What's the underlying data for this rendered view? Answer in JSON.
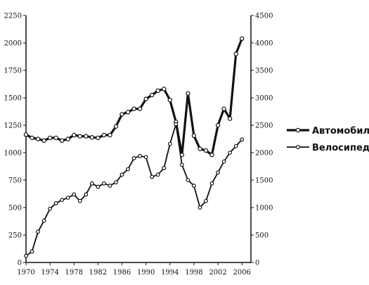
{
  "chart_data": {
    "type": "line",
    "title": "",
    "xlabel": "",
    "ylabel": "",
    "y2label": "",
    "grid": false,
    "legend_position": "right",
    "x": [
      1970,
      1971,
      1972,
      1973,
      1974,
      1975,
      1976,
      1977,
      1978,
      1979,
      1980,
      1981,
      1982,
      1983,
      1984,
      1985,
      1986,
      1987,
      1988,
      1989,
      1990,
      1991,
      1992,
      1993,
      1994,
      1995,
      1996,
      1997,
      1998,
      1999,
      2000,
      2001,
      2002,
      2003,
      2004,
      2005,
      2006
    ],
    "x_ticks": [
      "1970",
      "1974",
      "1978",
      "1982",
      "1986",
      "1990",
      "1994",
      "1998",
      "2002",
      "2006"
    ],
    "xlim": [
      1970,
      2007.5
    ],
    "ylim_left": [
      0,
      2250
    ],
    "left_ticks": [
      "0",
      "250",
      "500",
      "750",
      "1000",
      "1250",
      "1500",
      "1750",
      "2000",
      "2250"
    ],
    "ylim_right": [
      0,
      4500
    ],
    "right_ticks": [
      "0",
      "500",
      "1000",
      "1500",
      "2000",
      "2500",
      "3000",
      "3500",
      "4000",
      "4500"
    ],
    "series": [
      {
        "name": "Автомобили",
        "axis": "right",
        "line_width": 3.2,
        "color": "#111111",
        "values": [
          2330,
          2270,
          2250,
          2220,
          2270,
          2270,
          2220,
          2250,
          2320,
          2300,
          2300,
          2280,
          2270,
          2320,
          2320,
          2480,
          2700,
          2740,
          2800,
          2800,
          2980,
          3050,
          3130,
          3160,
          2960,
          2560,
          1960,
          3080,
          2310,
          2070,
          2040,
          1960,
          2500,
          2800,
          2620,
          3800,
          4080
        ]
      },
      {
        "name": "Велосипеды",
        "axis": "left",
        "line_width": 1.8,
        "color": "#111111",
        "values": [
          60,
          100,
          280,
          380,
          490,
          540,
          570,
          590,
          620,
          560,
          620,
          720,
          690,
          720,
          700,
          730,
          800,
          850,
          950,
          970,
          960,
          780,
          800,
          860,
          1080,
          1260,
          890,
          750,
          700,
          500,
          560,
          720,
          820,
          920,
          1000,
          1060,
          1120
        ]
      }
    ]
  }
}
